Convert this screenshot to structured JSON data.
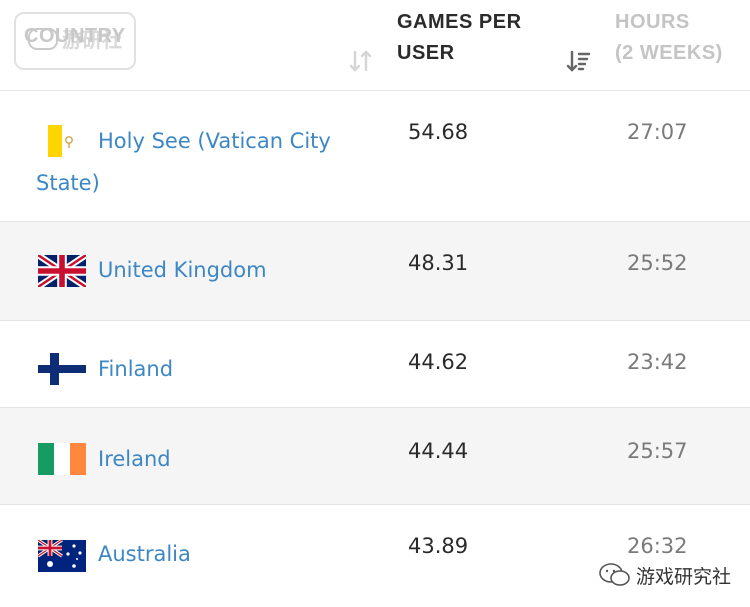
{
  "header": {
    "country_label": "COUNTRY",
    "games_label_line1": "GAMES PER",
    "games_label_line2": "USER",
    "hours_label_line1": "HOURS",
    "hours_label_line2": "(2 WEEKS)",
    "country_sort_icon": "sort-up-down-icon",
    "games_sort_icon": "sort-descending-icon"
  },
  "rows": [
    {
      "country": "Holy See (Vatican City State)",
      "games": "54.68",
      "hours": "27:07",
      "flag": "vatican-flag-icon"
    },
    {
      "country": "United Kingdom",
      "games": "48.31",
      "hours": "25:52",
      "flag": "uk-flag-icon"
    },
    {
      "country": "Finland",
      "games": "44.62",
      "hours": "23:42",
      "flag": "finland-flag-icon"
    },
    {
      "country": "Ireland",
      "games": "44.44",
      "hours": "25:57",
      "flag": "ireland-flag-icon"
    },
    {
      "country": "Australia",
      "games": "43.89",
      "hours": "26:32",
      "flag": "australia-flag-icon"
    }
  ],
  "watermark": {
    "top_text": "游研社",
    "bottom_text": "游戏研究社"
  },
  "colors": {
    "link": "#3d87c4",
    "row_alt": "#f5f5f5",
    "header_active": "#2b2b2b",
    "header_muted": "#c4c4c4"
  }
}
